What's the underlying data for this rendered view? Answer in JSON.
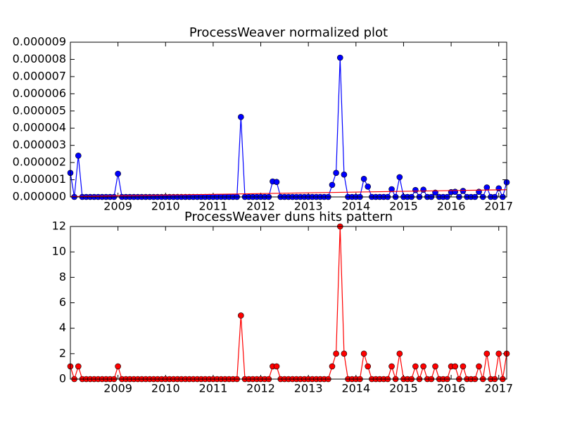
{
  "chart_data": [
    {
      "type": "line",
      "title": "ProcessWeaver normalized plot",
      "x": [
        2008,
        2008.083,
        2008.167,
        2008.25,
        2008.333,
        2008.417,
        2008.5,
        2008.583,
        2008.667,
        2008.75,
        2008.833,
        2008.917,
        2009,
        2009.083,
        2009.167,
        2009.25,
        2009.333,
        2009.417,
        2009.5,
        2009.583,
        2009.667,
        2009.75,
        2009.833,
        2009.917,
        2010,
        2010.083,
        2010.167,
        2010.25,
        2010.333,
        2010.417,
        2010.5,
        2010.583,
        2010.667,
        2010.75,
        2010.833,
        2010.917,
        2011,
        2011.083,
        2011.167,
        2011.25,
        2011.333,
        2011.417,
        2011.5,
        2011.583,
        2011.667,
        2011.75,
        2011.833,
        2011.917,
        2012,
        2012.083,
        2012.167,
        2012.25,
        2012.333,
        2012.417,
        2012.5,
        2012.583,
        2012.667,
        2012.75,
        2012.833,
        2012.917,
        2013,
        2013.083,
        2013.167,
        2013.25,
        2013.333,
        2013.417,
        2013.5,
        2013.583,
        2013.667,
        2013.75,
        2013.833,
        2013.917,
        2014,
        2014.083,
        2014.167,
        2014.25,
        2014.333,
        2014.417,
        2014.5,
        2014.583,
        2014.667,
        2014.75,
        2014.833,
        2014.917,
        2015,
        2015.083,
        2015.167,
        2015.25,
        2015.333,
        2015.417,
        2015.5,
        2015.583,
        2015.667,
        2015.75,
        2015.833,
        2015.917,
        2016,
        2016.083,
        2016.167,
        2016.25,
        2016.333,
        2016.417,
        2016.5,
        2016.583,
        2016.667,
        2016.75,
        2016.833,
        2016.917,
        2017,
        2017.083,
        2017.167
      ],
      "series": [
        {
          "color": "#0000ff",
          "marker": "o",
          "values": [
            1.4e-06,
            0,
            2.4e-06,
            0,
            0,
            0,
            0,
            0,
            0,
            0,
            0,
            0,
            1.35e-06,
            0,
            0,
            0,
            0,
            0,
            0,
            0,
            0,
            0,
            0,
            0,
            0,
            0,
            0,
            0,
            0,
            0,
            0,
            0,
            0,
            0,
            0,
            0,
            0,
            0,
            0,
            0,
            0,
            0,
            0,
            4.65e-06,
            0,
            0,
            0,
            0,
            0,
            0,
            0,
            9e-07,
            8.7e-07,
            0,
            0,
            0,
            0,
            0,
            0,
            0,
            0,
            0,
            0,
            0,
            0,
            0,
            7e-07,
            1.4e-06,
            8.1e-06,
            1.3e-06,
            0,
            0,
            0,
            0,
            1.05e-06,
            6e-07,
            0,
            0,
            0,
            0,
            0,
            4.5e-07,
            0,
            1.15e-06,
            0,
            0,
            0,
            4e-07,
            0,
            4.2e-07,
            0,
            0,
            2.5e-07,
            0,
            0,
            0,
            2.8e-07,
            3e-07,
            0,
            3.5e-07,
            0,
            0,
            0,
            3e-07,
            0,
            5.5e-07,
            0,
            0,
            5e-07,
            0,
            8.5e-07
          ]
        },
        {
          "color": "#ff0000",
          "x": [
            2008,
            2017.167
          ],
          "values": [
            2e-08,
            4.2e-07
          ]
        }
      ],
      "xlim": [
        2008,
        2017.167
      ],
      "xticks": [
        2009,
        2010,
        2011,
        2012,
        2013,
        2014,
        2015,
        2016,
        2017
      ],
      "ylim": [
        0,
        9e-06
      ],
      "yticks": [
        {
          "value": 0,
          "label": "0.000000"
        },
        {
          "value": 1e-06,
          "label": "0.000001"
        },
        {
          "value": 2e-06,
          "label": "0.000002"
        },
        {
          "value": 3e-06,
          "label": "0.000003"
        },
        {
          "value": 4e-06,
          "label": "0.000004"
        },
        {
          "value": 5e-06,
          "label": "0.000005"
        },
        {
          "value": 6e-06,
          "label": "0.000006"
        },
        {
          "value": 7e-06,
          "label": "0.000007"
        },
        {
          "value": 8e-06,
          "label": "0.000008"
        },
        {
          "value": 9e-06,
          "label": "0.000009"
        }
      ]
    },
    {
      "type": "line",
      "title": "ProcessWeaver duns hits pattern",
      "x": [
        2008,
        2008.083,
        2008.167,
        2008.25,
        2008.333,
        2008.417,
        2008.5,
        2008.583,
        2008.667,
        2008.75,
        2008.833,
        2008.917,
        2009,
        2009.083,
        2009.167,
        2009.25,
        2009.333,
        2009.417,
        2009.5,
        2009.583,
        2009.667,
        2009.75,
        2009.833,
        2009.917,
        2010,
        2010.083,
        2010.167,
        2010.25,
        2010.333,
        2010.417,
        2010.5,
        2010.583,
        2010.667,
        2010.75,
        2010.833,
        2010.917,
        2011,
        2011.083,
        2011.167,
        2011.25,
        2011.333,
        2011.417,
        2011.5,
        2011.583,
        2011.667,
        2011.75,
        2011.833,
        2011.917,
        2012,
        2012.083,
        2012.167,
        2012.25,
        2012.333,
        2012.417,
        2012.5,
        2012.583,
        2012.667,
        2012.75,
        2012.833,
        2012.917,
        2013,
        2013.083,
        2013.167,
        2013.25,
        2013.333,
        2013.417,
        2013.5,
        2013.583,
        2013.667,
        2013.75,
        2013.833,
        2013.917,
        2014,
        2014.083,
        2014.167,
        2014.25,
        2014.333,
        2014.417,
        2014.5,
        2014.583,
        2014.667,
        2014.75,
        2014.833,
        2014.917,
        2015,
        2015.083,
        2015.167,
        2015.25,
        2015.333,
        2015.417,
        2015.5,
        2015.583,
        2015.667,
        2015.75,
        2015.833,
        2015.917,
        2016,
        2016.083,
        2016.167,
        2016.25,
        2016.333,
        2016.417,
        2016.5,
        2016.583,
        2016.667,
        2016.75,
        2016.833,
        2016.917,
        2017,
        2017.083,
        2017.167
      ],
      "series": [
        {
          "color": "#ff0000",
          "marker": "o",
          "values": [
            1,
            0,
            1,
            0,
            0,
            0,
            0,
            0,
            0,
            0,
            0,
            0,
            1,
            0,
            0,
            0,
            0,
            0,
            0,
            0,
            0,
            0,
            0,
            0,
            0,
            0,
            0,
            0,
            0,
            0,
            0,
            0,
            0,
            0,
            0,
            0,
            0,
            0,
            0,
            0,
            0,
            0,
            0,
            5,
            0,
            0,
            0,
            0,
            0,
            0,
            0,
            1,
            1,
            0,
            0,
            0,
            0,
            0,
            0,
            0,
            0,
            0,
            0,
            0,
            0,
            0,
            1,
            2,
            12,
            2,
            0,
            0,
            0,
            0,
            2,
            1,
            0,
            0,
            0,
            0,
            0,
            1,
            0,
            2,
            0,
            0,
            0,
            1,
            0,
            1,
            0,
            0,
            1,
            0,
            0,
            0,
            1,
            1,
            0,
            1,
            0,
            0,
            0,
            1,
            0,
            2,
            0,
            0,
            2,
            0,
            2
          ]
        }
      ],
      "xlim": [
        2008,
        2017.167
      ],
      "xticks": [
        2009,
        2010,
        2011,
        2012,
        2013,
        2014,
        2015,
        2016,
        2017
      ],
      "ylim": [
        0,
        12
      ],
      "yticks": [
        0,
        2,
        4,
        6,
        8,
        10,
        12
      ]
    }
  ]
}
